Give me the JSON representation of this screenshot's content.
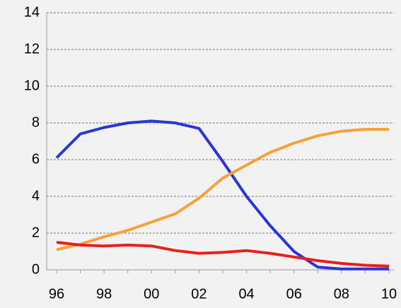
{
  "chart_data": {
    "type": "line",
    "categories": [
      "96",
      null,
      "98",
      null,
      "00",
      null,
      "02",
      null,
      "04",
      null,
      "06",
      null,
      "08",
      null,
      "10"
    ],
    "series": [
      {
        "color": "#2a35d8",
        "values": [
          6.1,
          7.4,
          7.75,
          8.0,
          8.1,
          8.0,
          7.7,
          5.9,
          4.0,
          2.4,
          1.0,
          0.15,
          0.05,
          0.05,
          0.05
        ]
      },
      {
        "color": "#f7a03a",
        "values": [
          1.1,
          1.4,
          1.8,
          2.15,
          2.6,
          3.05,
          3.9,
          5.0,
          5.7,
          6.4,
          6.9,
          7.3,
          7.55,
          7.65,
          7.65
        ]
      },
      {
        "color": "#e8201c",
        "values": [
          1.5,
          1.35,
          1.3,
          1.35,
          1.3,
          1.05,
          0.9,
          0.95,
          1.05,
          0.9,
          0.7,
          0.5,
          0.35,
          0.25,
          0.2
        ]
      }
    ],
    "ylim": [
      0,
      14
    ],
    "yticks": [
      0,
      2,
      4,
      6,
      8,
      10,
      12,
      14
    ],
    "grid": true
  }
}
